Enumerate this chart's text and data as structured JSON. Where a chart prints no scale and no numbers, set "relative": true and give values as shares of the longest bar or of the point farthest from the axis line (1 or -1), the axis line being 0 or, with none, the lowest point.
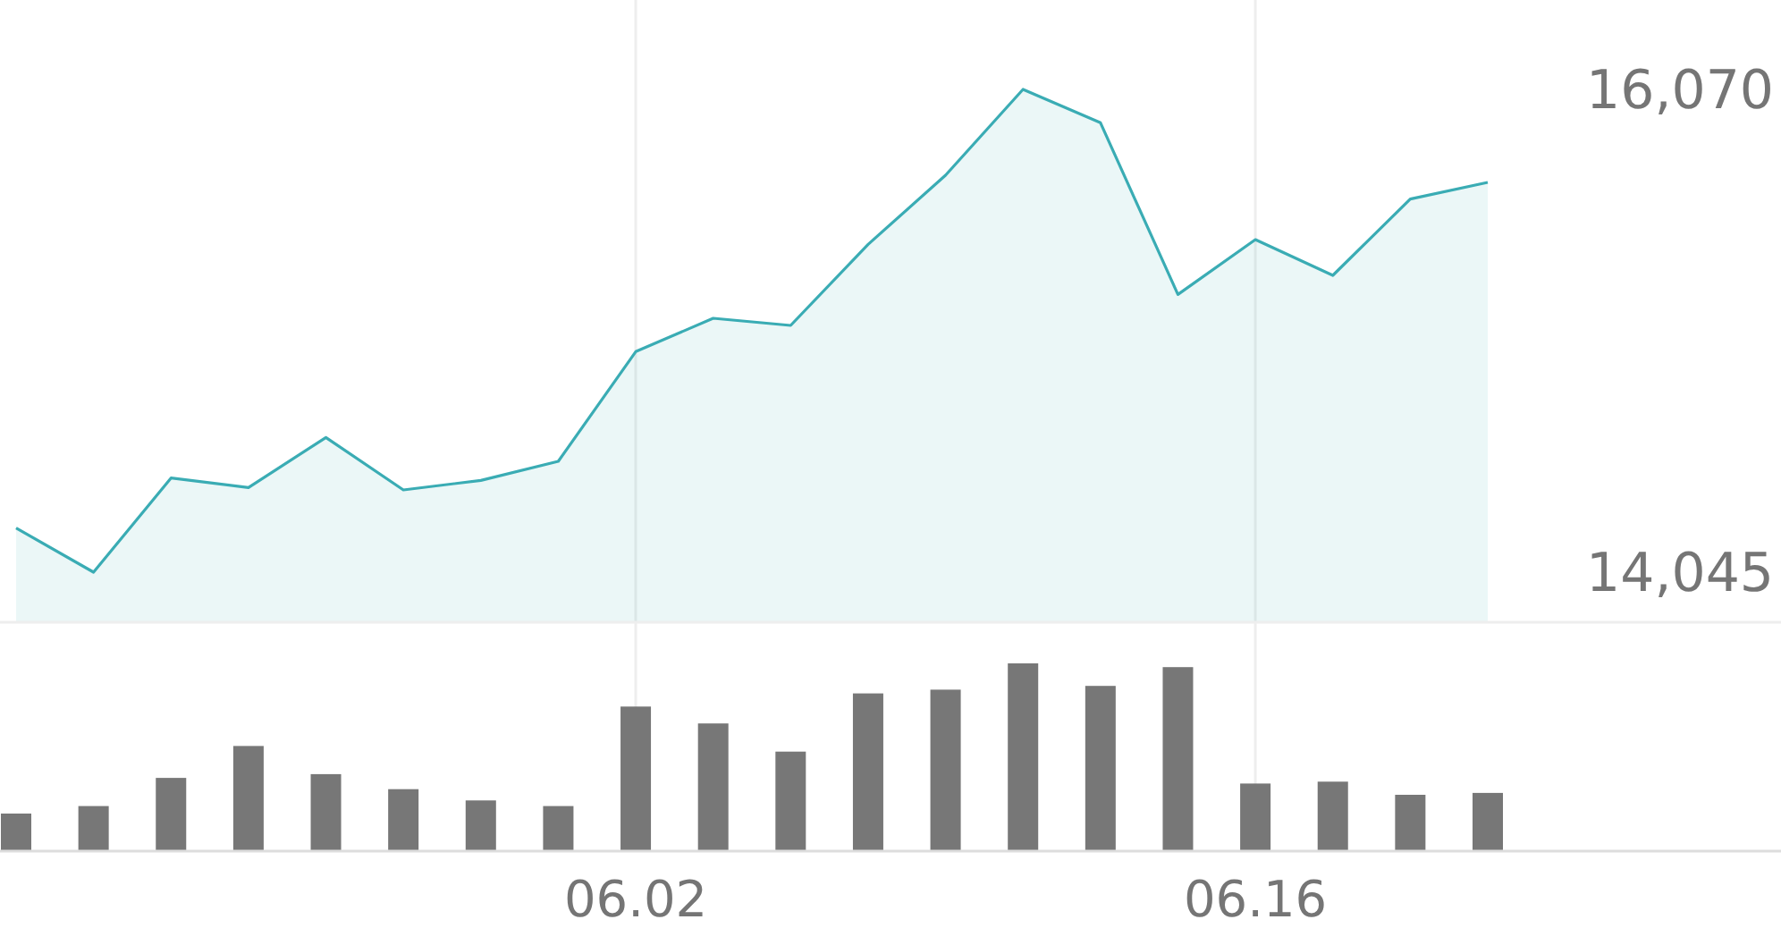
{
  "chart_data": [
    {
      "type": "area",
      "categories": [
        null,
        null,
        null,
        null,
        null,
        null,
        null,
        null,
        "06.02",
        null,
        null,
        null,
        null,
        null,
        null,
        null,
        "06.16",
        null,
        null,
        null
      ],
      "series": [
        {
          "color": "#3aacb4",
          "values": [
            14230,
            14045,
            14440,
            14400,
            14610,
            14390,
            14430,
            14510,
            14970,
            15110,
            15080,
            15420,
            15710,
            16070,
            15930,
            15210,
            15440,
            15290,
            15610,
            15680
          ]
        }
      ],
      "ylim": [
        13835,
        16070
      ],
      "yticks": [
        {
          "value": 16070,
          "label": "16,070"
        },
        {
          "value": 14045,
          "label": "14,045"
        }
      ],
      "grid": "x",
      "tick_labels": "y"
    },
    {
      "type": "bar",
      "relative": true,
      "categories": [
        null,
        null,
        null,
        null,
        null,
        null,
        null,
        null,
        "06.02",
        null,
        null,
        null,
        null,
        null,
        null,
        null,
        "06.16",
        null,
        null,
        null
      ],
      "values": [
        0.2,
        0.24,
        0.39,
        0.56,
        0.41,
        0.33,
        0.27,
        0.24,
        0.77,
        0.68,
        0.53,
        0.84,
        0.86,
        1,
        0.88,
        0.98,
        0.36,
        0.37,
        0.3,
        0.31
      ],
      "color": "#777777",
      "grid": "x",
      "tick_labels": "x"
    }
  ]
}
